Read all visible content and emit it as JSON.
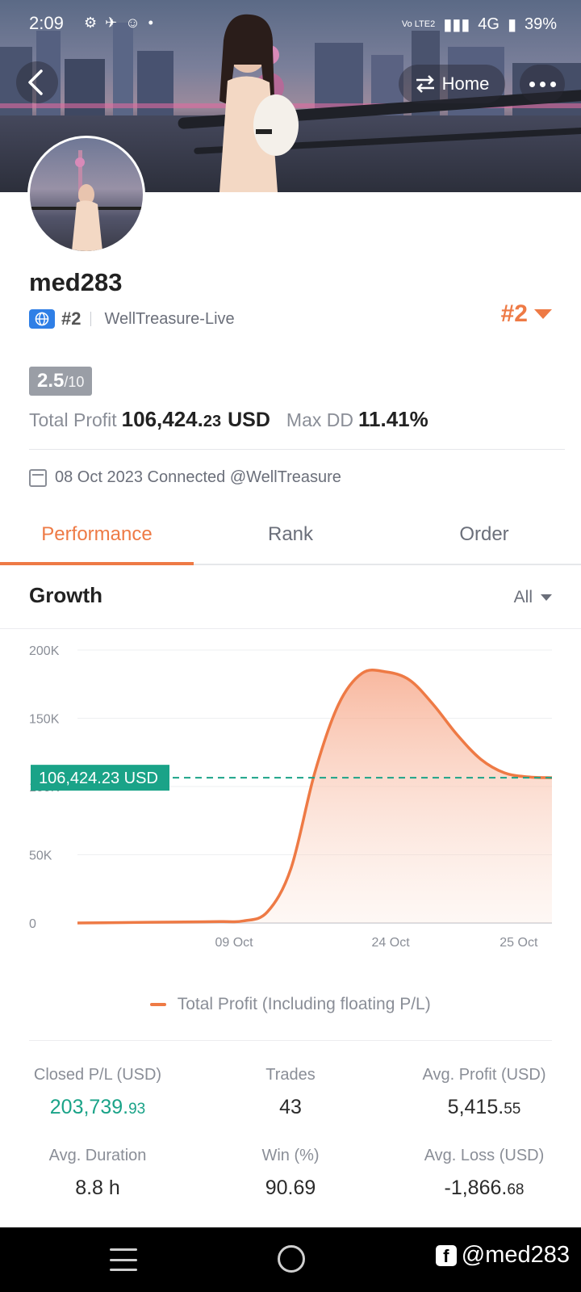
{
  "status_bar": {
    "time": "2:09",
    "network_label": "Vo LTE2",
    "signal_label": "4G",
    "battery": "39%"
  },
  "header": {
    "home_label": "Home"
  },
  "profile": {
    "username": "med283",
    "rank": "#2",
    "broker": "WellTreasure-Live",
    "overall_rank": "#2",
    "score": "2.5",
    "score_max": "/10",
    "total_profit_label": "Total Profit",
    "total_profit_main": "106,424.",
    "total_profit_decimal": "23",
    "total_profit_unit": "USD",
    "max_dd_label": "Max DD",
    "max_dd_value": "11.41%",
    "connected_text": "08 Oct 2023 Connected @WellTreasure"
  },
  "tabs": [
    {
      "label": "Performance",
      "active": true
    },
    {
      "label": "Rank",
      "active": false
    },
    {
      "label": "Order",
      "active": false
    }
  ],
  "growth": {
    "title": "Growth",
    "filter": "All"
  },
  "chart_data": {
    "type": "area",
    "y_tick_labels": [
      "200K",
      "150K",
      "100K",
      "50K",
      "0"
    ],
    "y_ticks": [
      200000,
      150000,
      100000,
      50000,
      0
    ],
    "ylim": [
      0,
      200000
    ],
    "x_tick_labels": [
      "09 Oct",
      "24 Oct",
      "25 Oct"
    ],
    "series": [
      {
        "name": "Total Profit (Including floating P/L)",
        "color": "#ee7a45",
        "x": [
          0,
          0.15,
          0.3,
          0.35,
          0.4,
          0.45,
          0.5,
          0.55,
          0.6,
          0.65,
          0.7,
          0.75,
          0.8,
          0.85,
          0.9,
          0.95,
          1.0
        ],
        "values": [
          0,
          500,
          1000,
          1500,
          8000,
          40000,
          110000,
          160000,
          183000,
          184000,
          178000,
          160000,
          138000,
          120000,
          110000,
          107000,
          106424.23
        ]
      }
    ],
    "current_value_label": "106,424.23 USD",
    "current_value": 106424.23,
    "reference_line_color": "#1aa388"
  },
  "legend_label": "Total Profit (Including floating P/L)",
  "stats": {
    "closed_pl_label": "Closed P/L (USD)",
    "closed_pl_main": "203,739.",
    "closed_pl_decimal": "93",
    "trades_label": "Trades",
    "trades_value": "43",
    "avg_profit_label": "Avg. Profit (USD)",
    "avg_profit_main": "5,415.",
    "avg_profit_decimal": "55",
    "avg_duration_label": "Avg. Duration",
    "avg_duration_value": "8.8 h",
    "win_label": "Win (%)",
    "win_value": "90.69",
    "avg_loss_label": "Avg. Loss (USD)",
    "avg_loss_main": "-1,866.",
    "avg_loss_decimal": "68"
  },
  "watermark": "@med283",
  "colors": {
    "accent": "#ee7a45",
    "positive": "#1aa388",
    "score_badge": "#9a9ea6"
  }
}
